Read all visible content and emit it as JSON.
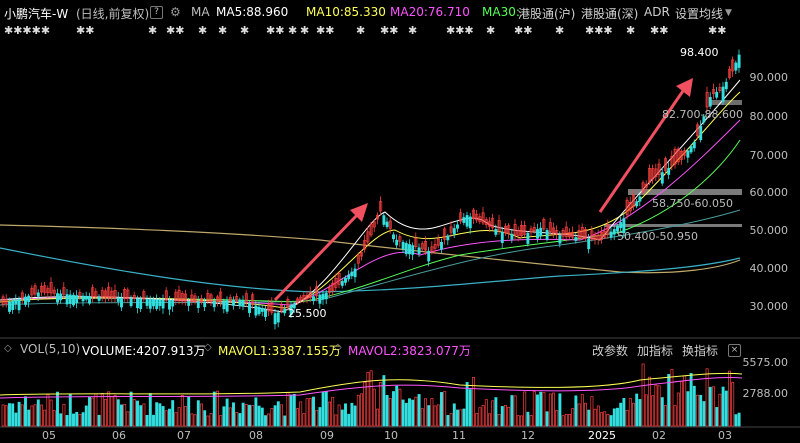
{
  "header": {
    "stock_name": "小鹏汽车-W",
    "period_label": "(日线,前复权)",
    "help_label": "?",
    "ma_label": "MA",
    "ma5": "MA5:88.960",
    "ma10": "MA10:85.330",
    "ma20": "MA20:76.710",
    "ma30": "MA30:",
    "hk_connect_sh": "港股通(沪)",
    "hk_connect_sz": "港股通(深)",
    "adr": "ADR",
    "settings": "设置均线"
  },
  "markers": {
    "groups": [
      "✱✱✱✱✱",
      "✱✱",
      "✱",
      "✱✱",
      "✱",
      "✱",
      "✱",
      "✱✱",
      "✱",
      "✱",
      "✱✱",
      "✱",
      "✱✱",
      "✱",
      "✱✱✱",
      "✱",
      "✱✱",
      "✱",
      "✱✱✱",
      "✱",
      "✱✱",
      "✱✱"
    ]
  },
  "price_axis": {
    "labels": [
      "90.000",
      "80.000",
      "70.000",
      "60.000",
      "50.000",
      "40.000",
      "30.000"
    ]
  },
  "annotations": {
    "high": "98.400",
    "low": "25.500",
    "zone1": "82.700-88.600",
    "zone2": "58.750-60.050",
    "zone3": "50.400-50.950"
  },
  "volume_panel": {
    "title": "VOL(5,10)",
    "volume": "VOLUME:4207.913万",
    "mavol1": "MAVOL1:3387.155万",
    "mavol2": "MAVOL2:3823.077万",
    "change_params": "改参数",
    "add_indicator": "加指标",
    "switch_indicator": "换指标",
    "axis": [
      "5575.00",
      "2788.00"
    ]
  },
  "x_axis": {
    "labels": [
      "05",
      "06",
      "07",
      "08",
      "09",
      "10",
      "11",
      "12",
      "2025",
      "02",
      "03"
    ]
  },
  "colors": {
    "up": "#ff4040",
    "down": "#33e0e0",
    "ma5": "#ffffff",
    "ma10": "#ffff55",
    "ma20": "#ff55ff",
    "ma30": "#55ff55",
    "arrow": "#f05060"
  }
}
